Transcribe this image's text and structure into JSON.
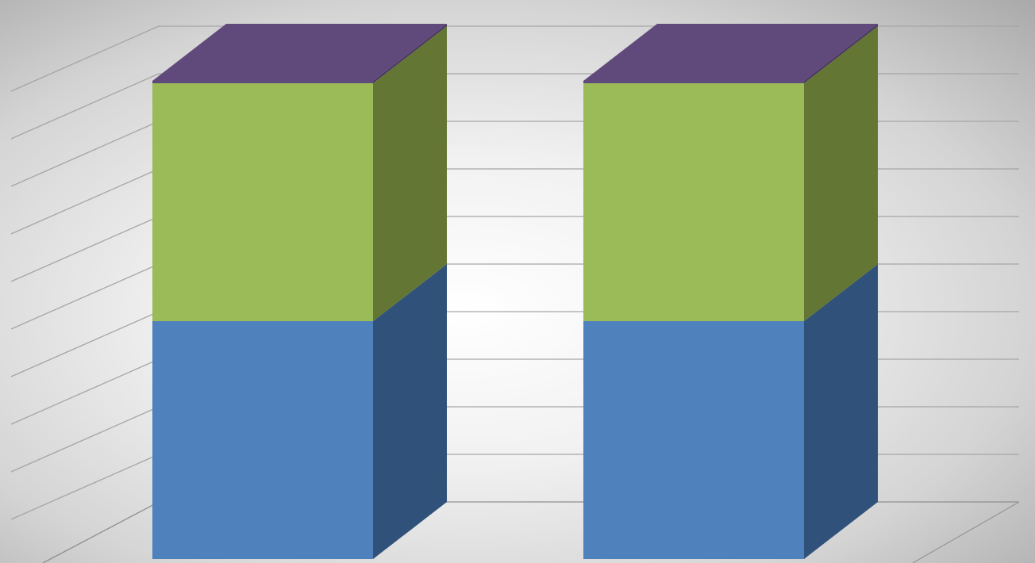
{
  "chart_data": {
    "type": "bar",
    "stacked": true,
    "three_d": true,
    "categories": [
      "",
      ""
    ],
    "series": [
      {
        "values": [
          50,
          50
        ],
        "color": "#4F81BD",
        "side_color": "#30527A"
      },
      {
        "values": [
          50,
          50
        ],
        "color": "#9BBB59",
        "side_color": "#647634"
      },
      {
        "values": [
          0.5,
          0.5
        ],
        "color": "#604A7B",
        "side_color": "#4A3960"
      }
    ],
    "ylim": [
      0,
      100
    ],
    "grid": true,
    "legend": "none",
    "title": "",
    "xlabel": "",
    "ylabel": ""
  }
}
